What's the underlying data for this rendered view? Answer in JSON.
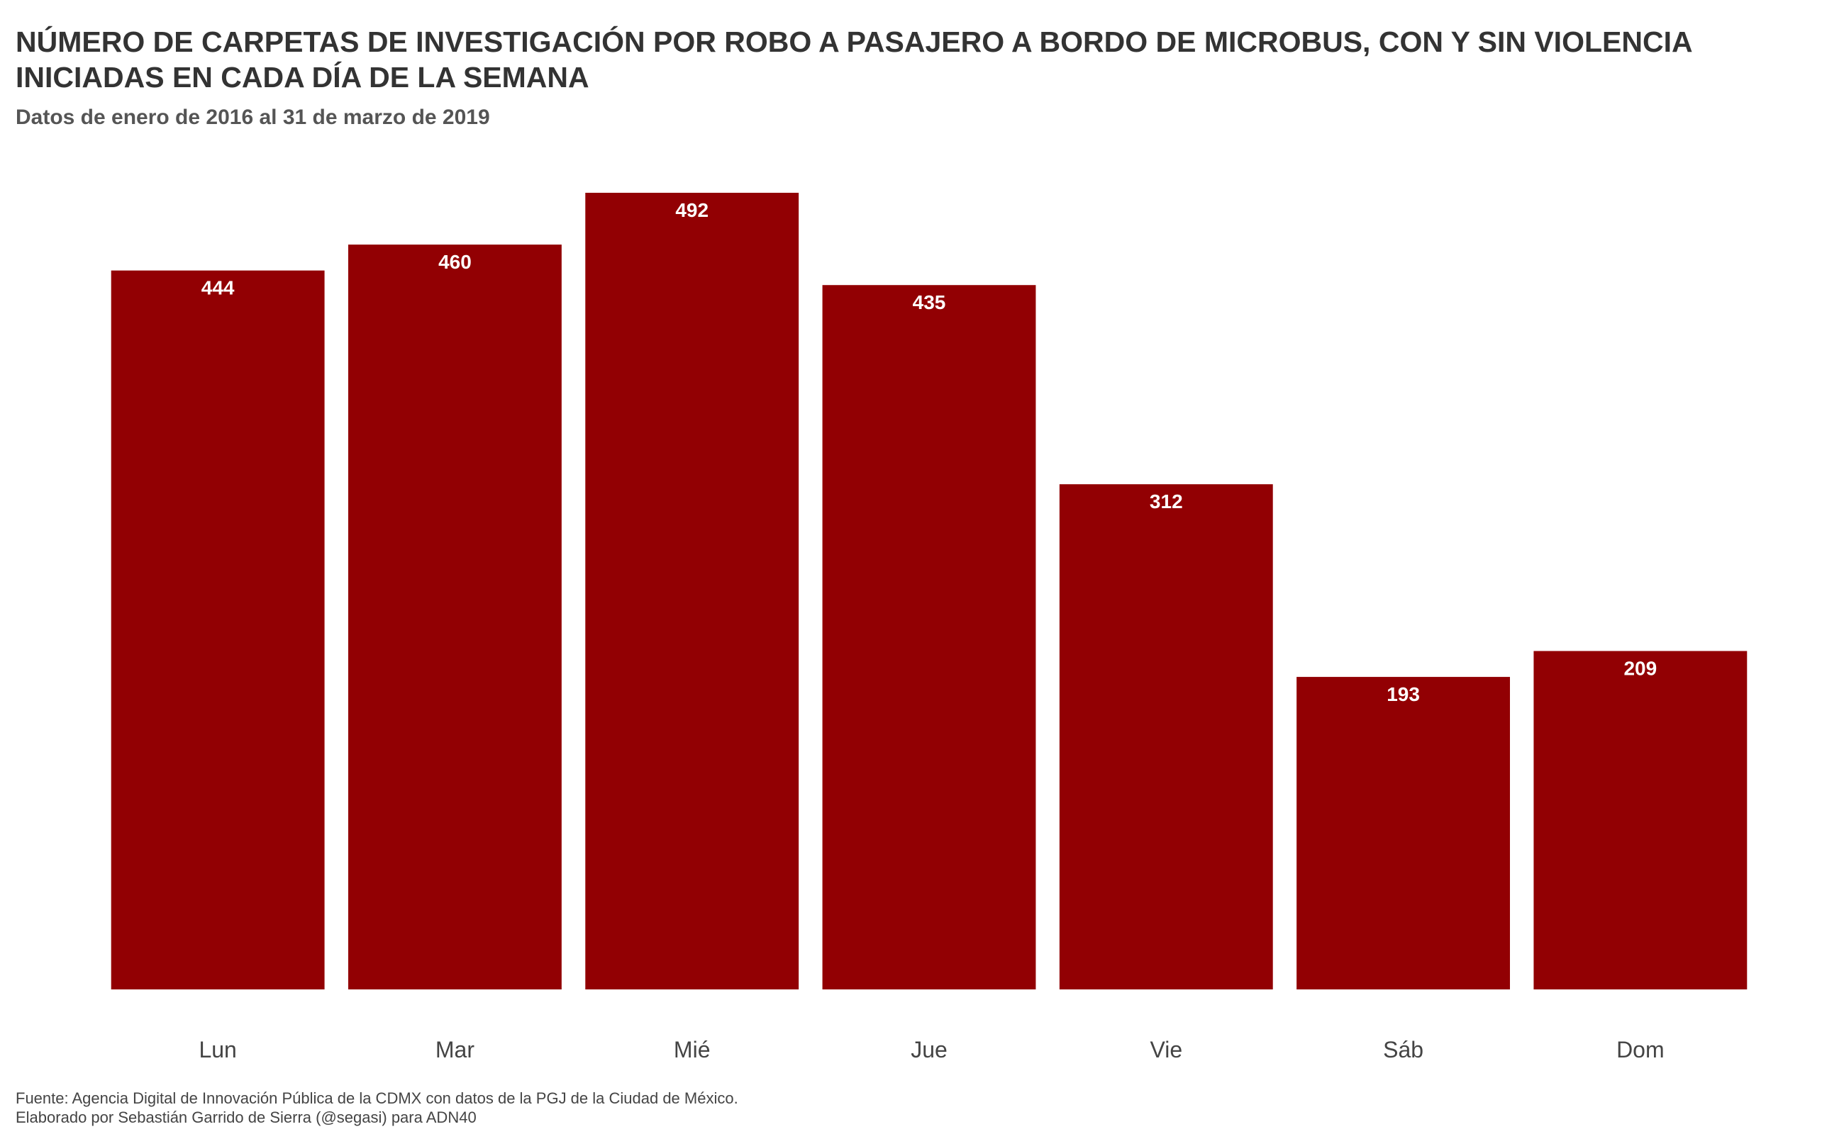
{
  "chart_data": {
    "type": "bar",
    "title": "NÚMERO DE CARPETAS DE INVESTIGACIÓN POR ROBO A PASAJERO A BORDO DE MICROBUS, CON Y SIN VIOLENCIA INICIADAS EN CADA DÍA DE LA SEMANA",
    "subtitle": "Datos de enero de 2016 al 31 de marzo de 2019",
    "categories": [
      "Lun",
      "Mar",
      "Mié",
      "Jue",
      "Vie",
      "Sáb",
      "Dom"
    ],
    "values": [
      444,
      460,
      492,
      435,
      312,
      193,
      209
    ],
    "xlabel": "",
    "ylabel": "",
    "ylim": [
      0,
      492
    ],
    "grid": false,
    "bar_color": "#920003",
    "label_color": "#ffffff"
  },
  "caption": {
    "source": "Fuente: Agencia Digital de Innovación Pública de la CDMX con datos de la PGJ de la Ciudad de México.",
    "credit": "Elaborado por Sebastián Garrido de Sierra (@segasi) para ADN40"
  }
}
